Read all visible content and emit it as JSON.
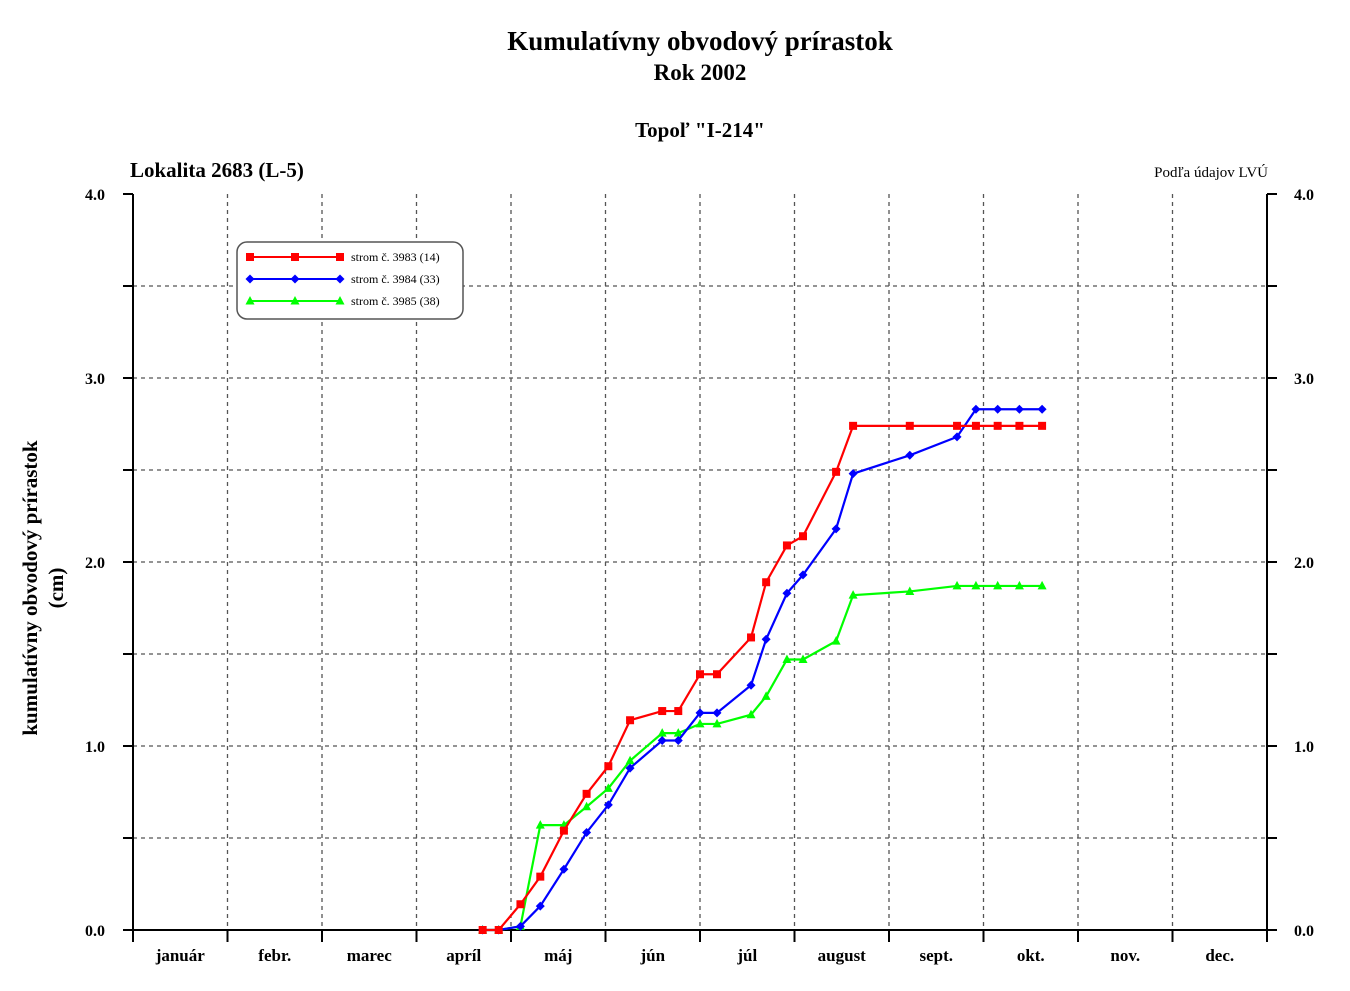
{
  "titles": {
    "main": "Kumulatívny obvodový prírastok",
    "year": "Rok 2002",
    "species": "Topoľ \"I-214\"",
    "locality": "Lokalita 2683 (L-5)",
    "source": "Podľa údajov LVÚ"
  },
  "chart_data": {
    "type": "line",
    "ylabel_line1": "kumulatívny obvodový prírastok",
    "ylabel_line2": "(cm)",
    "x_unit": "months (0 = start of January, 12 = end of December)",
    "xlim": [
      0,
      12
    ],
    "ylim": [
      0,
      4
    ],
    "grid": true,
    "legend_position": "top-left",
    "y_major_ticks": [
      "0.0",
      "1.0",
      "2.0",
      "3.0",
      "4.0"
    ],
    "y_minor_ticks": [
      0.5,
      1.5,
      2.5,
      3.5
    ],
    "months": [
      "január",
      "febr.",
      "marec",
      "apríl",
      "máj",
      "jún",
      "júl",
      "august",
      "sept.",
      "okt.",
      "nov.",
      "dec."
    ],
    "series": [
      {
        "name": "strom č. 3983 (14)",
        "color": "#ff0000",
        "marker": "square",
        "x": [
          3.7,
          3.87,
          4.1,
          4.31,
          4.56,
          4.8,
          5.03,
          5.26,
          5.6,
          5.77,
          6.0,
          6.18,
          6.54,
          6.7,
          6.92,
          7.09,
          7.44,
          7.62,
          8.22,
          8.72,
          8.92,
          9.15,
          9.38,
          9.62
        ],
        "y": [
          0.0,
          0.0,
          0.14,
          0.29,
          0.54,
          0.74,
          0.89,
          1.14,
          1.19,
          1.19,
          1.39,
          1.39,
          1.59,
          1.89,
          2.09,
          2.14,
          2.49,
          2.74,
          2.74,
          2.74,
          2.74,
          2.74,
          2.74,
          2.74
        ]
      },
      {
        "name": "strom č. 3984 (33)",
        "color": "#0000ff",
        "marker": "diamond",
        "x": [
          3.7,
          3.87,
          4.1,
          4.31,
          4.56,
          4.8,
          5.03,
          5.26,
          5.6,
          5.77,
          6.0,
          6.18,
          6.54,
          6.7,
          6.92,
          7.09,
          7.44,
          7.62,
          8.22,
          8.72,
          8.92,
          9.15,
          9.38,
          9.62
        ],
        "y": [
          0.0,
          0.0,
          0.02,
          0.13,
          0.33,
          0.53,
          0.68,
          0.88,
          1.03,
          1.03,
          1.18,
          1.18,
          1.33,
          1.58,
          1.83,
          1.93,
          2.18,
          2.48,
          2.58,
          2.68,
          2.83,
          2.83,
          2.83,
          2.83
        ]
      },
      {
        "name": "strom č. 3985 (38)",
        "color": "#00ff00",
        "marker": "triangle",
        "x": [
          3.7,
          3.87,
          4.1,
          4.31,
          4.56,
          4.8,
          5.03,
          5.26,
          5.6,
          5.77,
          6.0,
          6.18,
          6.54,
          6.7,
          6.92,
          7.09,
          7.44,
          7.62,
          8.22,
          8.72,
          8.92,
          9.15,
          9.38,
          9.62
        ],
        "y": [
          0.0,
          0.0,
          0.02,
          0.57,
          0.57,
          0.67,
          0.77,
          0.92,
          1.07,
          1.07,
          1.12,
          1.12,
          1.17,
          1.27,
          1.47,
          1.47,
          1.57,
          1.82,
          1.84,
          1.87,
          1.87,
          1.87,
          1.87,
          1.87
        ]
      }
    ]
  }
}
